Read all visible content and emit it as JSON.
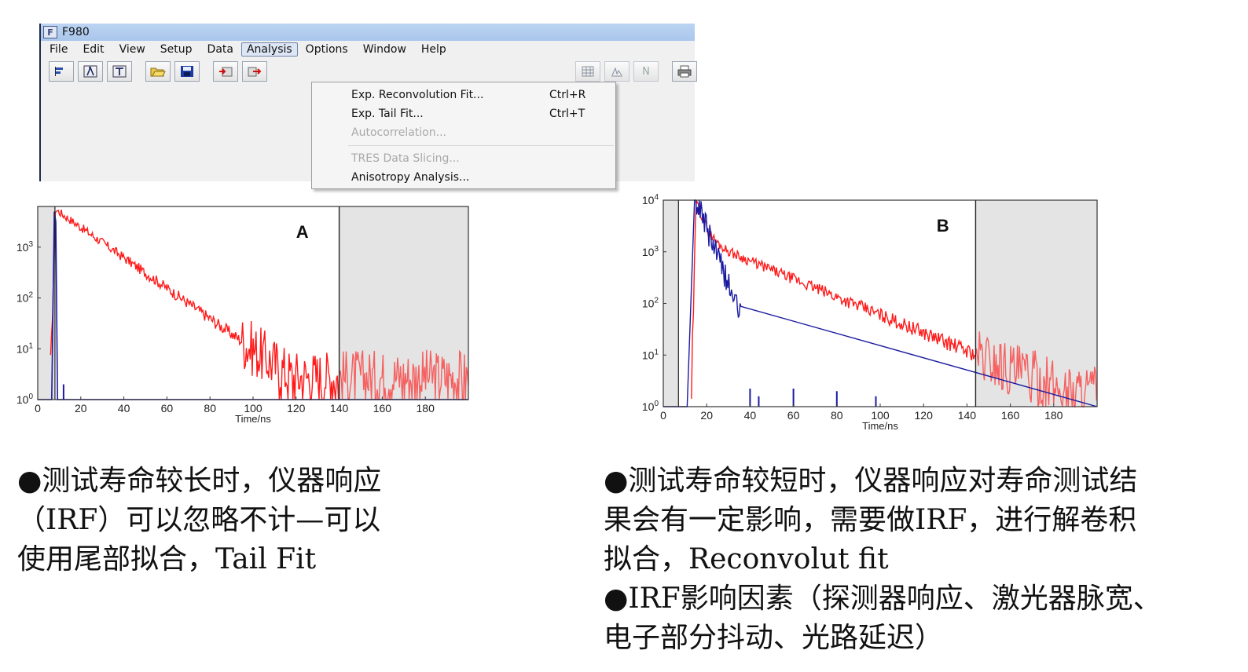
{
  "window": {
    "title": "F980",
    "icon_letter": "F"
  },
  "menubar": {
    "items": [
      "File",
      "Edit",
      "View",
      "Setup",
      "Data",
      "Analysis",
      "Options",
      "Window",
      "Help"
    ],
    "active": "Analysis"
  },
  "toolbar": {
    "icons": [
      "bar-chart-icon",
      "lambda-icon",
      "tau-icon",
      "open-folder-icon",
      "save-icon",
      "import-icon",
      "export-icon"
    ],
    "right_icons": [
      "grid-icon",
      "peak-icon",
      "n-icon",
      "print-icon"
    ],
    "n_label": "N"
  },
  "analysis_menu": {
    "items": [
      {
        "label": "Exp. Reconvolution Fit...",
        "shortcut": "Ctrl+R",
        "enabled": true
      },
      {
        "label": "Exp. Tail Fit...",
        "shortcut": "Ctrl+T",
        "enabled": true
      },
      {
        "label": "Autocorrelation...",
        "shortcut": "",
        "enabled": false
      },
      {
        "label": "TRES Data Slicing...",
        "shortcut": "",
        "enabled": false
      },
      {
        "label": "Anisotropy Analysis...",
        "shortcut": "",
        "enabled": true
      }
    ]
  },
  "chart_data": [
    {
      "type": "line",
      "panel_label": "A",
      "xlabel": "Time/ns",
      "ylabel": "",
      "xlim": [
        0,
        200
      ],
      "x_ticks": [
        0,
        20,
        40,
        60,
        80,
        100,
        120,
        140,
        160,
        180
      ],
      "y_scale": "log",
      "ylim_exp": [
        0,
        3.8
      ],
      "y_tick_labels": [
        {
          "base": "10",
          "exp": "0"
        },
        {
          "base": "10",
          "exp": "1"
        },
        {
          "base": "10",
          "exp": "2"
        },
        {
          "base": "10",
          "exp": "3"
        }
      ],
      "fit_range": [
        8,
        140
      ],
      "series": [
        {
          "name": "decay",
          "color": "#ff1a1a",
          "peak_time": 8,
          "peak_log": 3.75,
          "lifetime_ns": 14.5,
          "noise_floor_log": 0.45
        },
        {
          "name": "IRF",
          "color": "#1a1aa0",
          "peak_time": 8,
          "peak_log": 3.7,
          "width_ns": 1.2
        }
      ]
    },
    {
      "type": "line",
      "panel_label": "B",
      "xlabel": "Time/ns",
      "ylabel": "",
      "xlim": [
        0,
        200
      ],
      "x_ticks": [
        0,
        20,
        40,
        60,
        80,
        100,
        120,
        140,
        160,
        180
      ],
      "y_scale": "log",
      "ylim_exp": [
        0,
        4
      ],
      "y_tick_labels": [
        {
          "base": "10",
          "exp": "0"
        },
        {
          "base": "10",
          "exp": "1"
        },
        {
          "base": "10",
          "exp": "2"
        },
        {
          "base": "10",
          "exp": "3"
        },
        {
          "base": "10",
          "exp": "4"
        }
      ],
      "fit_range": [
        7,
        144
      ],
      "series": [
        {
          "name": "decay",
          "color": "#ff1a1a",
          "peak_time": 15,
          "peak_log": 4.0,
          "fast_lifetime_ns": 3,
          "slow_lifetime_ns": 25,
          "noise_floor_log": 0.3
        },
        {
          "name": "IRF",
          "color": "#1a1aa0",
          "peak_time": 15,
          "peak_log": 4.0,
          "lifetime_ns": 4
        }
      ]
    }
  ],
  "text_a": {
    "lines": [
      "●测试寿命较长时，仪器响应",
      "（IRF）可以忽略不计—可以",
      "使用尾部拟合，Tail Fit"
    ]
  },
  "text_b": {
    "lines": [
      "●测试寿命较短时，仪器响应对寿命测试结",
      "果会有一定影响，需要做IRF，进行解卷积",
      "拟合，Reconvolut fit",
      "●IRF影响因素（探测器响应、激光器脉宽、",
      "电子部分抖动、光路延迟）"
    ]
  }
}
